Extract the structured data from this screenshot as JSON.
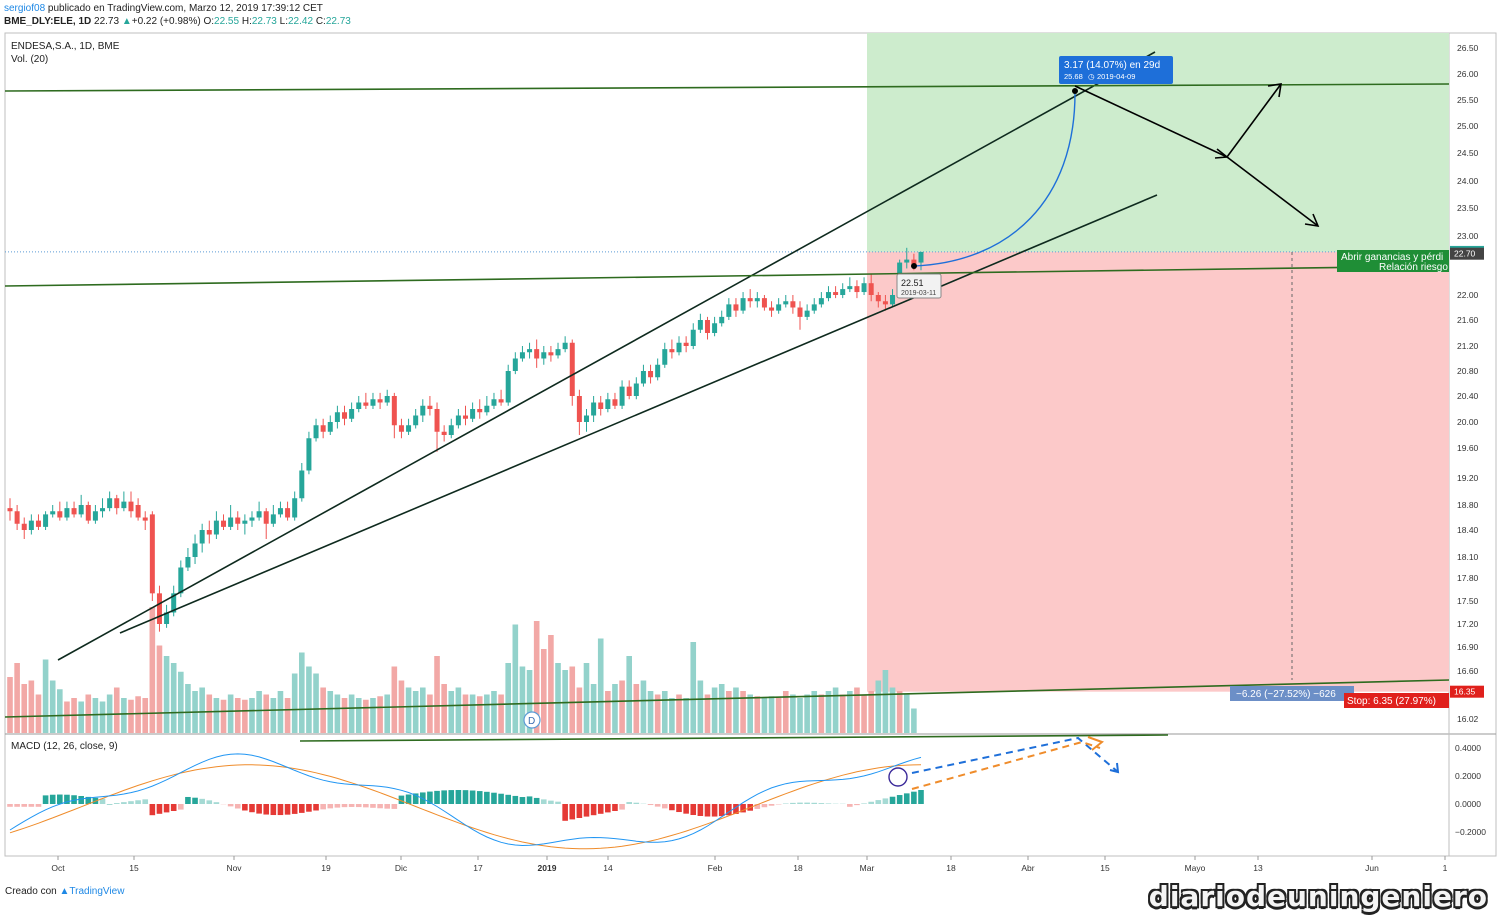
{
  "header": {
    "author": "sergiof08",
    "published": "publicado en TradingView.com, Marzo 12, 2019 17:39:12 CET",
    "symbol": "BME_DLY:ELE, 1D",
    "last": "22.73",
    "change": "+0.22 (+0.98%)",
    "o_label": "O:",
    "o": "22.55",
    "h_label": "H:",
    "h": "22.73",
    "l_label": "L:",
    "l": "22.42",
    "c_label": "C:",
    "c": "22.73"
  },
  "pane_titles": {
    "main": "ENDESA,S.A., 1D, BME",
    "volume": "Vol. (20)",
    "macd": "MACD (12, 26, close, 9)"
  },
  "colors": {
    "up": "#26a69a",
    "down": "#ef5350",
    "profit_zone": "#cdeccd",
    "loss_zone": "#fcc9c9",
    "trend_green": "#2e6b1f",
    "macd_line": "#2196f3",
    "signal_line": "#ef8c2b",
    "projection_blue": "#1e6fd9"
  },
  "chart_data": {
    "type": "candlestick",
    "y_axis": {
      "ylim": [
        15.9,
        26.7
      ],
      "ticks": [
        "26.50",
        "26.00",
        "25.50",
        "25.00",
        "24.50",
        "24.00",
        "23.50",
        "23.00",
        "22.00",
        "21.60",
        "21.20",
        "20.80",
        "20.40",
        "20.00",
        "19.60",
        "19.20",
        "18.80",
        "18.40",
        "18.10",
        "17.80",
        "17.50",
        "17.20",
        "16.90",
        "16.60",
        "16.02"
      ]
    },
    "x_axis": {
      "labels": [
        "Oct",
        "15",
        "Nov",
        "19",
        "Dic",
        "17",
        "2019",
        "14",
        "Feb",
        "18",
        "Mar",
        "18",
        "Abr",
        "15",
        "Mayo",
        "13",
        "Jun",
        "1"
      ]
    },
    "candles": [
      [
        18.75,
        18.7,
        18.9,
        18.55
      ],
      [
        18.7,
        18.5,
        18.8,
        18.4
      ],
      [
        18.5,
        18.4,
        18.6,
        18.3
      ],
      [
        18.4,
        18.55,
        18.65,
        18.35
      ],
      [
        18.55,
        18.45,
        18.65,
        18.4
      ],
      [
        18.45,
        18.65,
        18.7,
        18.4
      ],
      [
        18.65,
        18.7,
        18.8,
        18.6
      ],
      [
        18.7,
        18.6,
        18.85,
        18.55
      ],
      [
        18.6,
        18.75,
        18.85,
        18.55
      ],
      [
        18.75,
        18.65,
        18.85,
        18.6
      ],
      [
        18.65,
        18.8,
        18.95,
        18.6
      ],
      [
        18.8,
        18.55,
        18.85,
        18.5
      ],
      [
        18.55,
        18.7,
        18.8,
        18.5
      ],
      [
        18.7,
        18.75,
        18.9,
        18.6
      ],
      [
        18.75,
        18.9,
        19.0,
        18.7
      ],
      [
        18.9,
        18.75,
        18.95,
        18.65
      ],
      [
        18.75,
        18.85,
        19.0,
        18.7
      ],
      [
        18.85,
        18.7,
        19.0,
        18.6
      ],
      [
        18.8,
        18.6,
        18.9,
        18.55
      ],
      [
        18.6,
        18.55,
        18.7,
        18.4
      ],
      [
        18.65,
        17.6,
        18.7,
        17.5
      ],
      [
        17.6,
        17.2,
        17.7,
        17.1
      ],
      [
        17.2,
        17.35,
        17.45,
        17.15
      ],
      [
        17.35,
        17.6,
        17.7,
        17.3
      ],
      [
        17.6,
        17.95,
        18.05,
        17.55
      ],
      [
        17.95,
        18.1,
        18.2,
        17.9
      ],
      [
        18.1,
        18.25,
        18.35,
        18.0
      ],
      [
        18.25,
        18.4,
        18.5,
        18.15
      ],
      [
        18.4,
        18.35,
        18.55,
        18.25
      ],
      [
        18.35,
        18.55,
        18.7,
        18.3
      ],
      [
        18.55,
        18.45,
        18.65,
        18.4
      ],
      [
        18.45,
        18.6,
        18.8,
        18.4
      ],
      [
        18.6,
        18.5,
        18.7,
        18.4
      ],
      [
        18.5,
        18.55,
        18.65,
        18.35
      ],
      [
        18.55,
        18.6,
        18.7,
        18.45
      ],
      [
        18.6,
        18.7,
        18.85,
        18.55
      ],
      [
        18.7,
        18.5,
        18.75,
        18.3
      ],
      [
        18.5,
        18.65,
        18.8,
        18.45
      ],
      [
        18.65,
        18.75,
        18.85,
        18.6
      ],
      [
        18.75,
        18.6,
        18.85,
        18.55
      ],
      [
        18.6,
        18.9,
        19.0,
        18.55
      ],
      [
        18.9,
        19.3,
        19.4,
        18.85
      ],
      [
        19.3,
        19.75,
        19.85,
        19.25
      ],
      [
        19.75,
        19.95,
        20.05,
        19.7
      ],
      [
        19.95,
        19.85,
        20.05,
        19.75
      ],
      [
        19.85,
        20.0,
        20.1,
        19.8
      ],
      [
        20.0,
        20.15,
        20.25,
        19.9
      ],
      [
        20.15,
        20.05,
        20.25,
        19.95
      ],
      [
        20.05,
        20.2,
        20.3,
        20.0
      ],
      [
        20.2,
        20.3,
        20.4,
        20.15
      ],
      [
        20.3,
        20.25,
        20.45,
        20.2
      ],
      [
        20.25,
        20.35,
        20.45,
        20.2
      ],
      [
        20.35,
        20.3,
        20.45,
        20.2
      ],
      [
        20.3,
        20.4,
        20.5,
        20.25
      ],
      [
        20.4,
        19.95,
        20.45,
        19.75
      ],
      [
        19.95,
        19.85,
        20.05,
        19.75
      ],
      [
        19.85,
        19.95,
        20.05,
        19.8
      ],
      [
        19.95,
        20.1,
        20.2,
        19.9
      ],
      [
        20.1,
        20.25,
        20.35,
        20.0
      ],
      [
        20.25,
        20.2,
        20.4,
        20.1
      ],
      [
        20.2,
        19.85,
        20.3,
        19.55
      ],
      [
        19.85,
        19.8,
        19.95,
        19.7
      ],
      [
        19.8,
        19.95,
        20.05,
        19.75
      ],
      [
        19.95,
        20.1,
        20.2,
        19.9
      ],
      [
        20.1,
        20.05,
        20.25,
        19.95
      ],
      [
        20.05,
        20.2,
        20.3,
        20.0
      ],
      [
        20.2,
        20.15,
        20.35,
        20.05
      ],
      [
        20.15,
        20.25,
        20.4,
        20.1
      ],
      [
        20.25,
        20.35,
        20.45,
        20.2
      ],
      [
        20.35,
        20.3,
        20.5,
        20.25
      ],
      [
        20.3,
        20.8,
        20.9,
        20.25
      ],
      [
        20.8,
        21.0,
        21.1,
        20.75
      ],
      [
        21.0,
        21.1,
        21.2,
        20.95
      ],
      [
        21.1,
        21.15,
        21.25,
        21.0
      ],
      [
        21.15,
        21.0,
        21.3,
        20.85
      ],
      [
        21.0,
        21.1,
        21.2,
        20.9
      ],
      [
        21.1,
        21.05,
        21.2,
        20.95
      ],
      [
        21.05,
        21.15,
        21.25,
        21.0
      ],
      [
        21.15,
        21.25,
        21.35,
        21.1
      ],
      [
        21.25,
        20.4,
        21.3,
        20.25
      ],
      [
        20.4,
        20.0,
        20.5,
        19.8
      ],
      [
        20.0,
        20.1,
        20.2,
        19.85
      ],
      [
        20.1,
        20.3,
        20.4,
        20.0
      ],
      [
        20.3,
        20.2,
        20.4,
        20.1
      ],
      [
        20.2,
        20.35,
        20.45,
        20.15
      ],
      [
        20.35,
        20.25,
        20.45,
        20.2
      ],
      [
        20.25,
        20.55,
        20.65,
        20.2
      ],
      [
        20.55,
        20.4,
        20.65,
        20.35
      ],
      [
        20.4,
        20.6,
        20.7,
        20.35
      ],
      [
        20.6,
        20.8,
        20.9,
        20.55
      ],
      [
        20.8,
        20.7,
        20.9,
        20.6
      ],
      [
        20.7,
        20.9,
        21.0,
        20.65
      ],
      [
        20.9,
        21.15,
        21.25,
        20.85
      ],
      [
        21.15,
        21.1,
        21.3,
        21.0
      ],
      [
        21.1,
        21.25,
        21.35,
        21.05
      ],
      [
        21.25,
        21.2,
        21.35,
        21.1
      ],
      [
        21.2,
        21.45,
        21.55,
        21.15
      ],
      [
        21.45,
        21.6,
        21.7,
        21.4
      ],
      [
        21.6,
        21.4,
        21.65,
        21.3
      ],
      [
        21.4,
        21.55,
        21.65,
        21.35
      ],
      [
        21.55,
        21.65,
        21.75,
        21.5
      ],
      [
        21.65,
        21.85,
        21.95,
        21.6
      ],
      [
        21.85,
        21.75,
        21.95,
        21.65
      ],
      [
        21.75,
        21.95,
        22.05,
        21.7
      ],
      [
        21.95,
        21.9,
        22.1,
        21.8
      ],
      [
        21.9,
        21.95,
        22.05,
        21.8
      ],
      [
        21.95,
        21.8,
        22.0,
        21.75
      ],
      [
        21.8,
        21.75,
        21.9,
        21.65
      ],
      [
        21.75,
        21.85,
        21.95,
        21.7
      ],
      [
        21.85,
        21.9,
        22.0,
        21.8
      ],
      [
        21.9,
        21.8,
        22.0,
        21.7
      ],
      [
        21.8,
        21.65,
        21.9,
        21.45
      ],
      [
        21.65,
        21.75,
        21.85,
        21.6
      ],
      [
        21.75,
        21.85,
        21.95,
        21.7
      ],
      [
        21.85,
        21.95,
        22.05,
        21.8
      ],
      [
        21.95,
        22.05,
        22.15,
        21.9
      ],
      [
        22.05,
        22.0,
        22.15,
        21.95
      ],
      [
        22.0,
        22.1,
        22.2,
        21.95
      ],
      [
        22.1,
        22.15,
        22.3,
        22.05
      ],
      [
        22.15,
        22.05,
        22.25,
        21.95
      ],
      [
        22.05,
        22.2,
        22.3,
        22.0
      ],
      [
        22.2,
        22.0,
        22.35,
        21.9
      ],
      [
        22.0,
        21.9,
        22.05,
        21.8
      ],
      [
        21.9,
        21.85,
        22.0,
        21.75
      ],
      [
        21.85,
        22.0,
        22.1,
        21.8
      ],
      [
        22.0,
        22.55,
        22.6,
        21.95
      ],
      [
        22.55,
        22.6,
        22.8,
        22.45
      ],
      [
        22.6,
        22.51,
        22.7,
        22.42
      ],
      [
        22.55,
        22.73,
        22.73,
        22.42
      ]
    ],
    "volume": [
      [
        0.32,
        0
      ],
      [
        0.4,
        0
      ],
      [
        0.28,
        0
      ],
      [
        0.3,
        0
      ],
      [
        0.22,
        0
      ],
      [
        0.42,
        1
      ],
      [
        0.3,
        1
      ],
      [
        0.25,
        1
      ],
      [
        0.18,
        0
      ],
      [
        0.2,
        0
      ],
      [
        0.18,
        1
      ],
      [
        0.22,
        0
      ],
      [
        0.2,
        1
      ],
      [
        0.18,
        1
      ],
      [
        0.22,
        1
      ],
      [
        0.26,
        0
      ],
      [
        0.2,
        1
      ],
      [
        0.19,
        0
      ],
      [
        0.21,
        0
      ],
      [
        0.2,
        0
      ],
      [
        0.72,
        0
      ],
      [
        0.5,
        0
      ],
      [
        0.44,
        1
      ],
      [
        0.4,
        1
      ],
      [
        0.35,
        1
      ],
      [
        0.28,
        1
      ],
      [
        0.24,
        1
      ],
      [
        0.26,
        1
      ],
      [
        0.22,
        0
      ],
      [
        0.2,
        1
      ],
      [
        0.19,
        0
      ],
      [
        0.22,
        1
      ],
      [
        0.2,
        0
      ],
      [
        0.19,
        0
      ],
      [
        0.2,
        1
      ],
      [
        0.24,
        1
      ],
      [
        0.22,
        0
      ],
      [
        0.2,
        1
      ],
      [
        0.24,
        1
      ],
      [
        0.2,
        0
      ],
      [
        0.34,
        1
      ],
      [
        0.46,
        1
      ],
      [
        0.38,
        1
      ],
      [
        0.34,
        1
      ],
      [
        0.26,
        0
      ],
      [
        0.24,
        1
      ],
      [
        0.22,
        1
      ],
      [
        0.2,
        0
      ],
      [
        0.22,
        1
      ],
      [
        0.2,
        1
      ],
      [
        0.19,
        0
      ],
      [
        0.2,
        1
      ],
      [
        0.21,
        0
      ],
      [
        0.22,
        1
      ],
      [
        0.38,
        0
      ],
      [
        0.3,
        0
      ],
      [
        0.26,
        1
      ],
      [
        0.24,
        1
      ],
      [
        0.26,
        1
      ],
      [
        0.22,
        0
      ],
      [
        0.44,
        0
      ],
      [
        0.28,
        0
      ],
      [
        0.24,
        1
      ],
      [
        0.26,
        1
      ],
      [
        0.22,
        0
      ],
      [
        0.22,
        1
      ],
      [
        0.21,
        0
      ],
      [
        0.22,
        1
      ],
      [
        0.24,
        1
      ],
      [
        0.22,
        0
      ],
      [
        0.4,
        1
      ],
      [
        0.62,
        1
      ],
      [
        0.38,
        1
      ],
      [
        0.36,
        1
      ],
      [
        0.64,
        0
      ],
      [
        0.48,
        0
      ],
      [
        0.56,
        0
      ],
      [
        0.4,
        1
      ],
      [
        0.36,
        1
      ],
      [
        0.38,
        0
      ],
      [
        0.26,
        0
      ],
      [
        0.4,
        1
      ],
      [
        0.28,
        1
      ],
      [
        0.54,
        1
      ],
      [
        0.24,
        0
      ],
      [
        0.28,
        1
      ],
      [
        0.3,
        0
      ],
      [
        0.44,
        1
      ],
      [
        0.28,
        0
      ],
      [
        0.3,
        1
      ],
      [
        0.24,
        1
      ],
      [
        0.22,
        0
      ],
      [
        0.24,
        1
      ],
      [
        0.2,
        1
      ],
      [
        0.22,
        0
      ],
      [
        0.2,
        1
      ],
      [
        0.52,
        1
      ],
      [
        0.3,
        1
      ],
      [
        0.22,
        0
      ],
      [
        0.26,
        1
      ],
      [
        0.28,
        1
      ],
      [
        0.24,
        0
      ],
      [
        0.26,
        1
      ],
      [
        0.24,
        0
      ],
      [
        0.22,
        1
      ],
      [
        0.21,
        0
      ],
      [
        0.2,
        1
      ],
      [
        0.21,
        1
      ],
      [
        0.2,
        0
      ],
      [
        0.24,
        0
      ],
      [
        0.22,
        1
      ],
      [
        0.2,
        1
      ],
      [
        0.22,
        1
      ],
      [
        0.24,
        1
      ],
      [
        0.22,
        0
      ],
      [
        0.24,
        1
      ],
      [
        0.26,
        1
      ],
      [
        0.22,
        0
      ],
      [
        0.24,
        1
      ],
      [
        0.26,
        0
      ],
      [
        0.22,
        0
      ],
      [
        0.24,
        0
      ],
      [
        0.3,
        1
      ],
      [
        0.36,
        1
      ],
      [
        0.26,
        1
      ],
      [
        0.24,
        0
      ],
      [
        0.22,
        1
      ],
      [
        0.14,
        1
      ]
    ],
    "volume_marker": "D",
    "macd": {
      "ylim": [
        -0.42,
        0.48
      ],
      "ticks": [
        "0.4000",
        "0.2000",
        "0.0000",
        "−0.2000"
      ]
    },
    "position": {
      "entry": 22.73,
      "target": 25.68,
      "stop": 16.35,
      "open_price": 22.7
    },
    "annotations": {
      "target_box_line1": "3.17 (14.07%) en 29d",
      "target_box_line2_price": "25.68",
      "target_box_line2_date": "2019-04-09",
      "tooltip_price": "22.51",
      "tooltip_date": "2019-03-11",
      "profit_label_1": "Abrir ganancias y pérdi",
      "profit_label_2": "Relación riesgo",
      "stop_distance": "−6.26 (−27.52%) −626",
      "stop_label": "Stop: 6.35 (27.97%)",
      "last_price_tag": "22.73",
      "open_price_tag": "22.70",
      "stop_price_tag": "16.35"
    }
  },
  "footer": {
    "created_with": "Creado con",
    "brand": "TradingView",
    "watermark": "diariodeuningeniero"
  }
}
